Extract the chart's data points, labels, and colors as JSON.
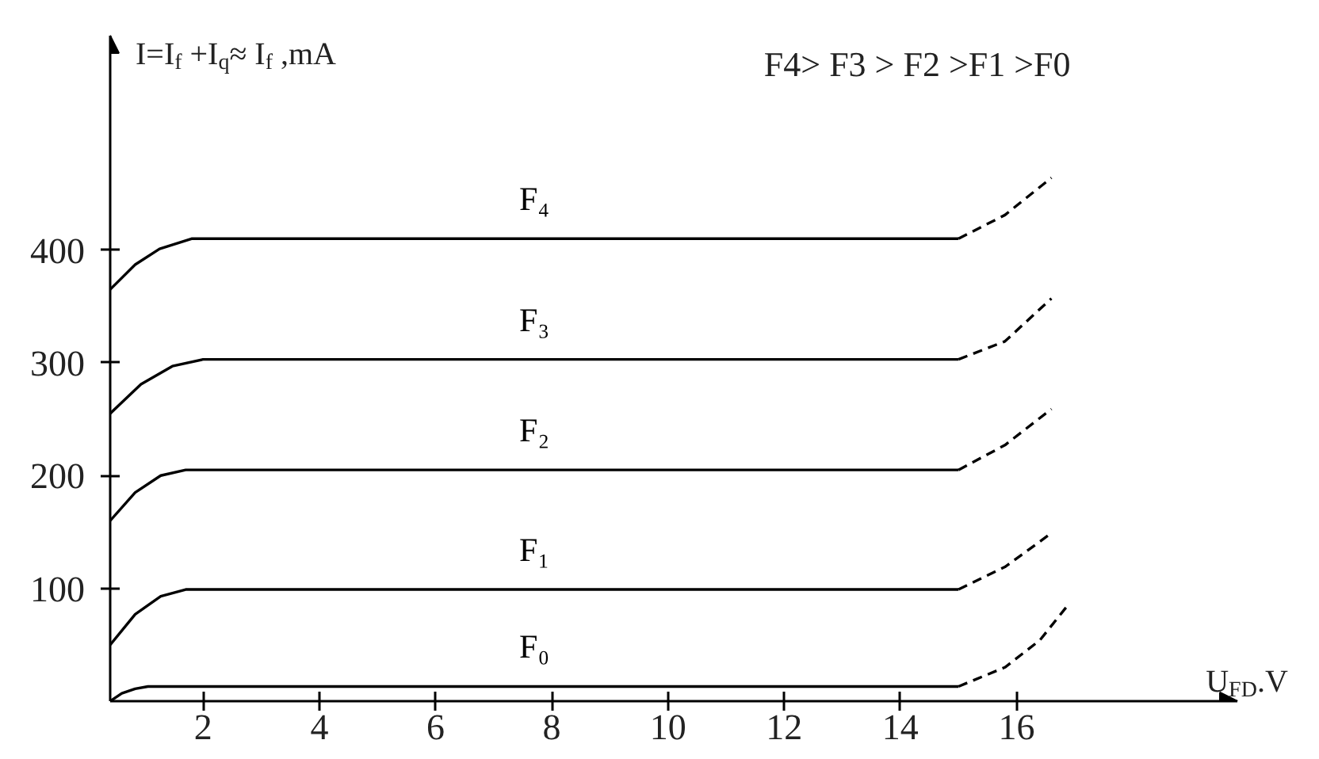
{
  "chart_data": {
    "type": "line",
    "xlabel": "U$_{FD}$.V",
    "ylabel": "I=I$_{f}$ +I$_{q}$≈ I$_{f}$ ,mA",
    "annotations": [
      "F4> F3 > F2 >F1 >F0"
    ],
    "xlim": [
      0.4,
      19.8
    ],
    "ylim": [
      0,
      590
    ],
    "xticks": [
      2,
      4,
      6,
      8,
      10,
      12,
      14,
      16
    ],
    "yticks": [
      100,
      200,
      300,
      400
    ],
    "grid": false,
    "series": [
      {
        "name": "F₄",
        "color": "#000000",
        "line_style": "solid",
        "x": [
          0.4,
          0.83,
          1.25,
          1.8,
          15.0
        ],
        "values": [
          365,
          387,
          401,
          410,
          410
        ]
      },
      {
        "color": "#000000",
        "line_style": "dashed",
        "x": [
          15.0,
          15.8,
          16.6
        ],
        "values": [
          410,
          431,
          464
        ]
      },
      {
        "name": "F₃",
        "color": "#000000",
        "line_style": "solid",
        "x": [
          0.4,
          0.93,
          1.47,
          2.0,
          15.0
        ],
        "values": [
          255,
          281,
          297,
          303,
          303
        ]
      },
      {
        "color": "#000000",
        "line_style": "dashed",
        "x": [
          15.0,
          15.8,
          16.6
        ],
        "values": [
          303,
          319,
          357
        ]
      },
      {
        "name": "F₂",
        "color": "#000000",
        "line_style": "solid",
        "x": [
          0.4,
          0.83,
          1.27,
          1.7,
          15.0
        ],
        "values": [
          160,
          185,
          200,
          205,
          205
        ]
      },
      {
        "color": "#000000",
        "line_style": "dashed",
        "x": [
          15.0,
          15.8,
          16.6
        ],
        "values": [
          205,
          227,
          259
        ]
      },
      {
        "name": "F₁",
        "color": "#000000",
        "line_style": "solid",
        "x": [
          0.4,
          0.83,
          1.27,
          1.7,
          15.0
        ],
        "values": [
          50,
          77,
          93,
          99,
          99
        ]
      },
      {
        "color": "#000000",
        "line_style": "dashed",
        "x": [
          15.0,
          15.8,
          16.6
        ],
        "values": [
          99,
          119,
          149
        ]
      },
      {
        "name": "F₀",
        "color": "#000000",
        "line_style": "solid",
        "x": [
          0.4,
          0.6,
          0.83,
          1.05,
          15.0
        ],
        "values": [
          0,
          7,
          11,
          13,
          13
        ]
      },
      {
        "color": "#000000",
        "line_style": "dashed",
        "x": [
          15.0,
          15.8,
          16.4,
          16.85
        ],
        "values": [
          13,
          30,
          54,
          83
        ]
      }
    ]
  }
}
